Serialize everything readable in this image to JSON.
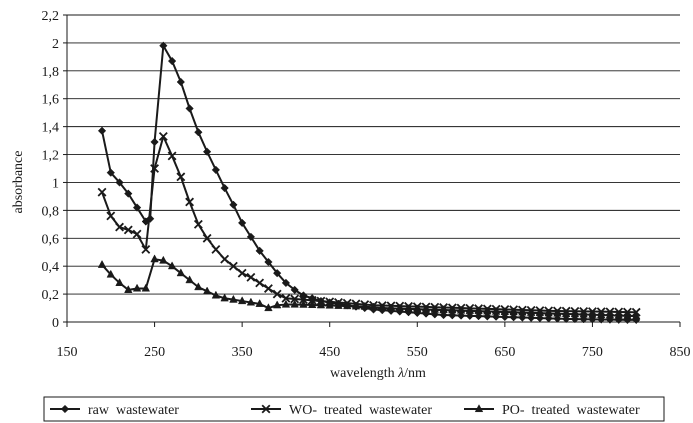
{
  "chart_data": {
    "type": "line",
    "title": "",
    "xlabel_text": "wavelength ",
    "xlabel_symbol": "λ",
    "xlabel_unit": "/nm",
    "ylabel": "absorbance",
    "xlim": [
      150,
      850
    ],
    "ylim": [
      0,
      2.2
    ],
    "x_ticks": [
      150,
      250,
      350,
      450,
      550,
      650,
      750,
      850
    ],
    "x_tick_labels": [
      "150",
      "250",
      "350",
      "450",
      "550",
      "650",
      "750",
      "850"
    ],
    "y_ticks": [
      0,
      0.2,
      0.4,
      0.6,
      0.8,
      1,
      1.2,
      1.4,
      1.6,
      1.8,
      2,
      2.2
    ],
    "y_tick_labels": [
      "0",
      "0,2",
      "0,4",
      "0,6",
      "0,8",
      "1",
      "1,2",
      "1,4",
      "1,6",
      "1,8",
      "2",
      "2,2"
    ],
    "grid": "horizontal",
    "legend_position": "bottom",
    "series": [
      {
        "name": "raw  wastewater",
        "marker": "diamond",
        "x": [
          190,
          200,
          210,
          220,
          230,
          240,
          245,
          250,
          260,
          270,
          280,
          290,
          300,
          310,
          320,
          330,
          340,
          350,
          360,
          370,
          380,
          390,
          400,
          410,
          420,
          430,
          440,
          450,
          460,
          470,
          480,
          490,
          500,
          510,
          520,
          530,
          540,
          550,
          560,
          570,
          580,
          590,
          600,
          610,
          620,
          630,
          640,
          650,
          660,
          670,
          680,
          690,
          700,
          710,
          720,
          730,
          740,
          750,
          760,
          770,
          780,
          790,
          800
        ],
        "y": [
          1.37,
          1.07,
          1.0,
          0.92,
          0.82,
          0.72,
          0.74,
          1.29,
          1.98,
          1.87,
          1.72,
          1.53,
          1.36,
          1.22,
          1.09,
          0.96,
          0.84,
          0.71,
          0.61,
          0.51,
          0.43,
          0.35,
          0.28,
          0.23,
          0.19,
          0.17,
          0.15,
          0.14,
          0.13,
          0.12,
          0.11,
          0.1,
          0.09,
          0.085,
          0.08,
          0.075,
          0.07,
          0.065,
          0.06,
          0.055,
          0.05,
          0.048,
          0.046,
          0.044,
          0.042,
          0.04,
          0.038,
          0.036,
          0.034,
          0.032,
          0.03,
          0.028,
          0.026,
          0.024,
          0.022,
          0.021,
          0.02,
          0.019,
          0.018,
          0.017,
          0.016,
          0.015,
          0.015
        ]
      },
      {
        "name": "WO-  treated  wastewater",
        "marker": "x",
        "x": [
          190,
          200,
          210,
          220,
          230,
          240,
          250,
          260,
          270,
          280,
          290,
          300,
          310,
          320,
          330,
          340,
          350,
          360,
          370,
          380,
          390,
          400,
          410,
          420,
          430,
          440,
          450,
          460,
          470,
          480,
          490,
          500,
          510,
          520,
          530,
          540,
          550,
          560,
          570,
          580,
          590,
          600,
          610,
          620,
          630,
          640,
          650,
          660,
          670,
          680,
          690,
          700,
          710,
          720,
          730,
          740,
          750,
          760,
          770,
          780,
          790,
          800
        ],
        "y": [
          0.93,
          0.76,
          0.68,
          0.66,
          0.63,
          0.52,
          1.1,
          1.33,
          1.19,
          1.04,
          0.86,
          0.7,
          0.6,
          0.52,
          0.45,
          0.4,
          0.35,
          0.32,
          0.28,
          0.24,
          0.2,
          0.17,
          0.165,
          0.16,
          0.155,
          0.15,
          0.145,
          0.14,
          0.135,
          0.13,
          0.125,
          0.12,
          0.118,
          0.116,
          0.114,
          0.112,
          0.11,
          0.108,
          0.106,
          0.104,
          0.102,
          0.1,
          0.098,
          0.096,
          0.094,
          0.092,
          0.09,
          0.088,
          0.086,
          0.084,
          0.082,
          0.08,
          0.079,
          0.078,
          0.077,
          0.076,
          0.075,
          0.074,
          0.073,
          0.072,
          0.071,
          0.07
        ]
      },
      {
        "name": "PO-  treated  wastewater",
        "marker": "triangle",
        "x": [
          190,
          200,
          210,
          220,
          230,
          240,
          250,
          260,
          270,
          280,
          290,
          300,
          310,
          320,
          330,
          340,
          350,
          360,
          370,
          380,
          390,
          400,
          410,
          420,
          430,
          440,
          450,
          460,
          470,
          480,
          490,
          500,
          510,
          520,
          530,
          540,
          550,
          560,
          570,
          580,
          590,
          600,
          610,
          620,
          630,
          640,
          650,
          660,
          670,
          680,
          690,
          700,
          710,
          720,
          730,
          740,
          750,
          760,
          770,
          780,
          790,
          800
        ],
        "y": [
          0.41,
          0.34,
          0.28,
          0.23,
          0.24,
          0.24,
          0.45,
          0.44,
          0.4,
          0.35,
          0.3,
          0.25,
          0.22,
          0.19,
          0.17,
          0.16,
          0.15,
          0.14,
          0.13,
          0.1,
          0.12,
          0.125,
          0.125,
          0.124,
          0.122,
          0.12,
          0.118,
          0.116,
          0.114,
          0.112,
          0.11,
          0.105,
          0.1,
          0.098,
          0.096,
          0.094,
          0.092,
          0.09,
          0.088,
          0.086,
          0.084,
          0.082,
          0.08,
          0.078,
          0.076,
          0.074,
          0.072,
          0.07,
          0.068,
          0.066,
          0.064,
          0.062,
          0.06,
          0.058,
          0.056,
          0.054,
          0.052,
          0.05,
          0.048,
          0.046,
          0.044,
          0.042
        ]
      }
    ]
  },
  "colors": {
    "line": "#1a1a1a",
    "grid": "#1a1a1a",
    "background": "#ffffff"
  }
}
